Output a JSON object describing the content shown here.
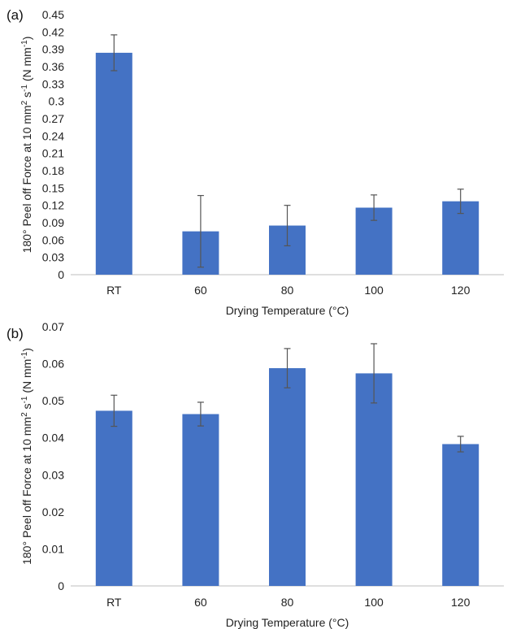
{
  "chart_data": [
    {
      "panel": "(a)",
      "type": "bar",
      "categories": [
        "RT",
        "60",
        "80",
        "100",
        "120"
      ],
      "values": [
        0.384,
        0.075,
        0.085,
        0.116,
        0.127
      ],
      "errors": [
        0.031,
        0.062,
        0.035,
        0.022,
        0.021
      ],
      "xlabel": "Drying Temperature (°C)",
      "ylabel": {
        "pre": "180° Peel off Force at 10 mm",
        "sup1": "2",
        "mid": " s",
        "sup2": "-1",
        "post": " (N mm",
        "sup3": "-1",
        "end": ")"
      },
      "ylim": [
        0,
        0.45
      ],
      "yticks": [
        "0",
        "0.03",
        "0.06",
        "0.09",
        "0.12",
        "0.15",
        "0.18",
        "0.21",
        "0.24",
        "0.27",
        "0.3",
        "0.33",
        "0.36",
        "0.39",
        "0.42",
        "0.45"
      ],
      "grid": false,
      "color": "#4472C4"
    },
    {
      "panel": "(b)",
      "type": "bar",
      "categories": [
        "RT",
        "60",
        "80",
        "100",
        "120"
      ],
      "values": [
        0.0473,
        0.0464,
        0.0588,
        0.0574,
        0.0383
      ],
      "errors": [
        0.0042,
        0.0032,
        0.0053,
        0.008,
        0.0021
      ],
      "xlabel": "Drying Temperature (°C)",
      "ylabel": {
        "pre": "180° Peel off Force at 10 mm",
        "sup1": "2",
        "mid": " s",
        "sup2": "-1",
        "post": " (N mm",
        "sup3": "-1",
        "end": ")"
      },
      "ylim": [
        0,
        0.07
      ],
      "yticks": [
        "0",
        "0.01",
        "0.02",
        "0.03",
        "0.04",
        "0.05",
        "0.06",
        "0.07"
      ],
      "grid": false,
      "color": "#4472C4"
    }
  ]
}
